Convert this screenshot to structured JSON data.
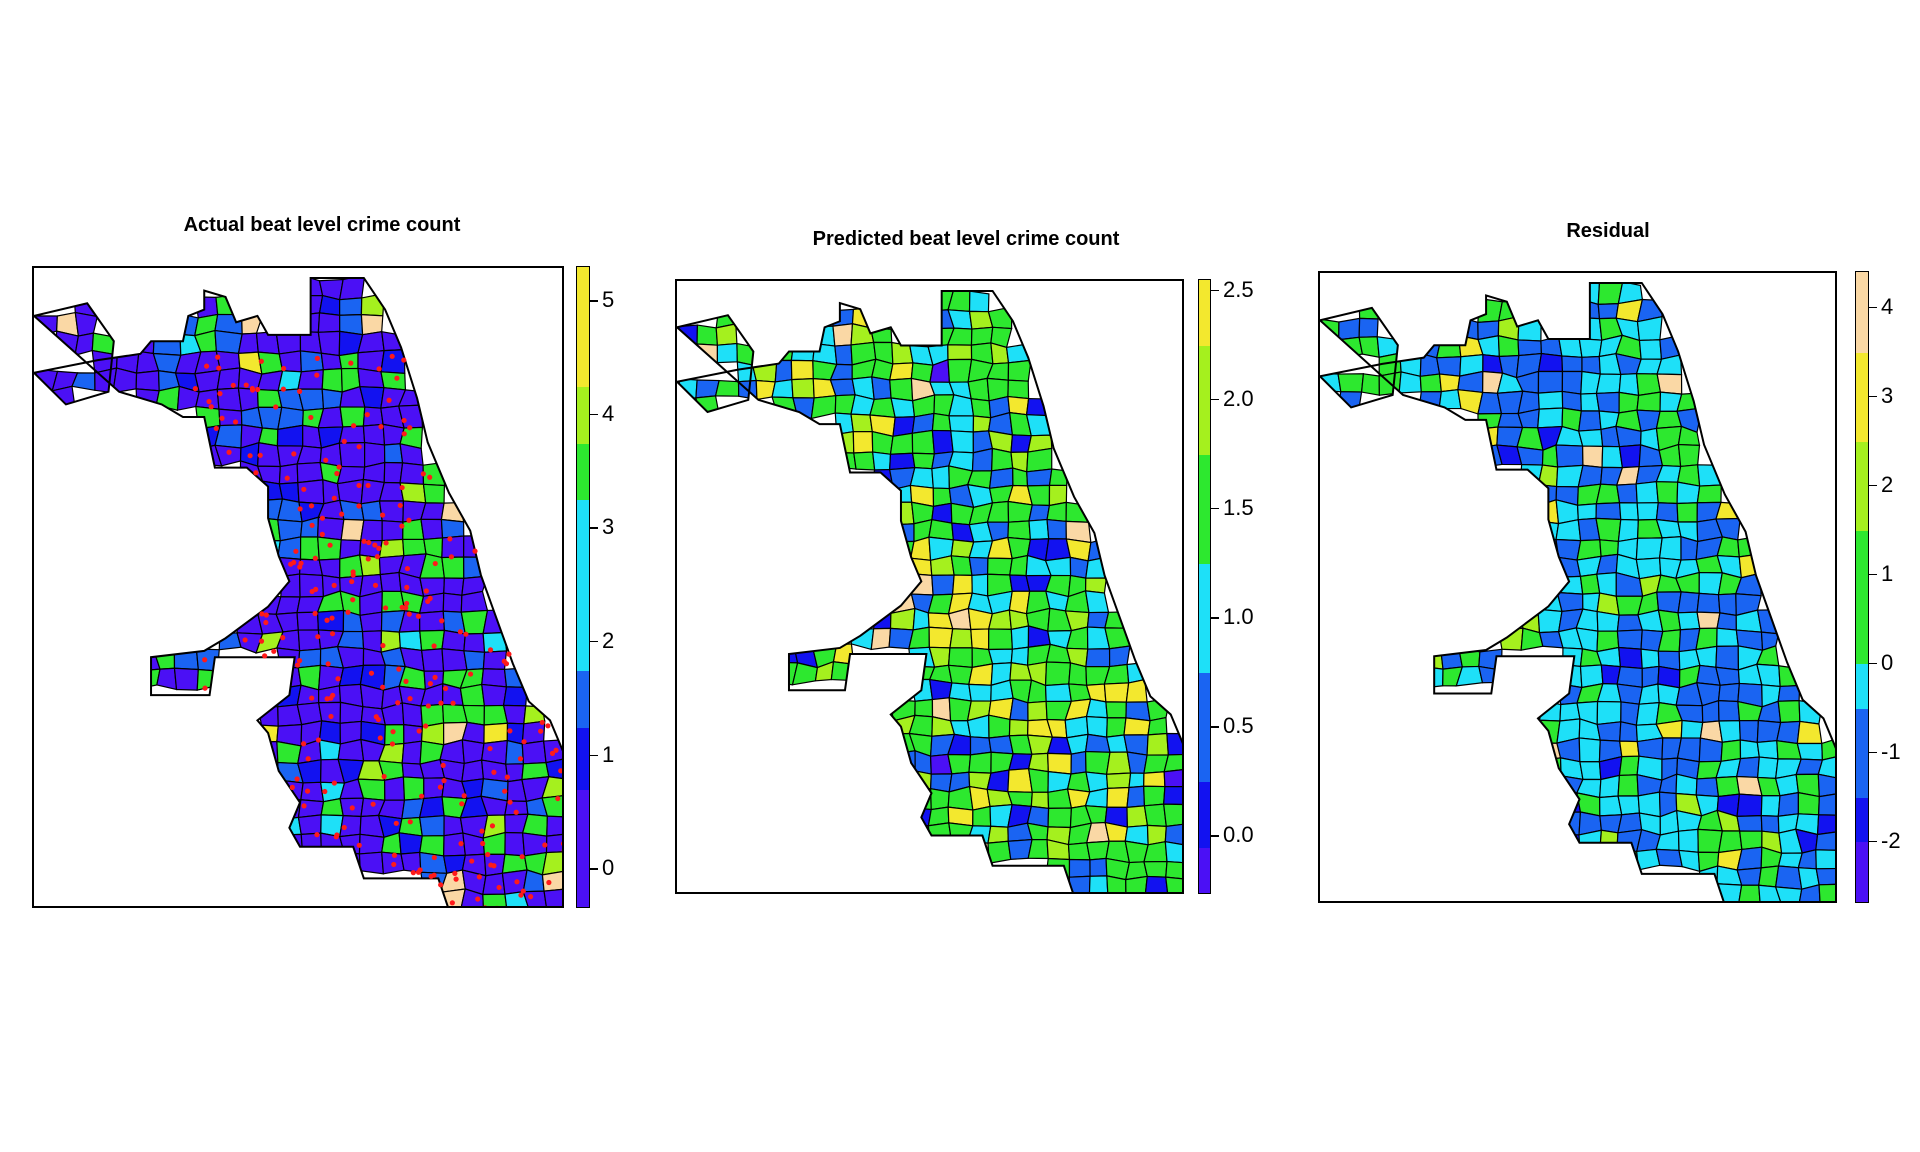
{
  "maps": [
    {
      "id": "actual",
      "title": "Actual beat level crime count",
      "legend": {
        "min": -0.35,
        "max": 5.3,
        "breaks": [
          -0.35,
          0.7,
          1.25,
          1.75,
          3.25,
          3.75,
          4.25,
          5.3
        ],
        "colors": [
          "#4b10f5",
          "#1212f0",
          "#1a64f2",
          "#1ee0f8",
          "#2de82f",
          "#a5f01e",
          "#f3e82e",
          "#fad8a5"
        ],
        "ticks": [
          "0",
          "1",
          "2",
          "3",
          "4",
          "5"
        ],
        "tick_values": [
          0,
          1,
          2,
          3,
          4,
          5
        ]
      },
      "overlay": {
        "points": true,
        "point_color": "#ff1a1a"
      }
    },
    {
      "id": "predicted",
      "title": "Predicted beat level crime count",
      "legend": {
        "min": -0.27,
        "max": 2.55,
        "breaks": [
          -0.27,
          -0.05,
          0.25,
          0.75,
          1.25,
          1.75,
          2.25,
          2.55
        ],
        "colors": [
          "#4b10f5",
          "#1212f0",
          "#1a64f2",
          "#1ee0f8",
          "#2de82f",
          "#a5f01e",
          "#f3e82e",
          "#fad8a5"
        ],
        "ticks": [
          "0.0",
          "0.5",
          "1.0",
          "1.5",
          "2.0",
          "2.5"
        ],
        "tick_values": [
          0,
          0.5,
          1,
          1.5,
          2,
          2.5
        ]
      },
      "overlay": {
        "points": false
      }
    },
    {
      "id": "residual",
      "title": "Residual",
      "legend": {
        "min": -2.7,
        "max": 4.4,
        "breaks": [
          -2.7,
          -2.0,
          -1.5,
          -0.5,
          0,
          1.5,
          2.5,
          3.5,
          4.4
        ],
        "colors": [
          "#4b10f5",
          "#1212f0",
          "#1a64f2",
          "#1ee0f8",
          "#2de82f",
          "#a5f01e",
          "#f3e82e",
          "#fad8a5"
        ],
        "ticks": [
          "-2",
          "-1",
          "0",
          "1",
          "2",
          "3",
          "4"
        ],
        "tick_values": [
          -2,
          -1,
          0,
          1,
          2,
          3,
          4
        ]
      },
      "overlay": {
        "points": false
      }
    }
  ]
}
